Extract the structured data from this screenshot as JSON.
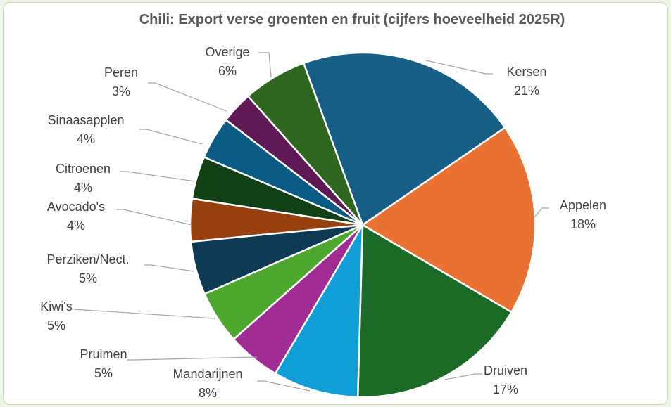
{
  "chart_data": {
    "type": "pie",
    "title": "Chili: Export verse groenten en fruit (cijfers hoeveelheid 2025R)",
    "categories": [
      "Kersen",
      "Appelen",
      "Druiven",
      "Mandarijnen",
      "Pruimen",
      "Kiwi's",
      "Perziken/Nect.",
      "Avocado's",
      "Citroenen",
      "Sinaasapplen",
      "Peren",
      "Overige"
    ],
    "values": [
      21,
      18,
      17,
      8,
      5,
      5,
      5,
      4,
      4,
      4,
      3,
      6
    ],
    "value_labels": [
      "21%",
      "18%",
      "17%",
      "8%",
      "5%",
      "5%",
      "5%",
      "4%",
      "4%",
      "4%",
      "3%",
      "6%"
    ],
    "colors": [
      "#175f86",
      "#e97132",
      "#1b6b26",
      "#0f9ed5",
      "#a02b93",
      "#4ea72e",
      "#0e3a53",
      "#974010",
      "#124016",
      "#0b5b85",
      "#5f1955",
      "#2f6620"
    ]
  }
}
